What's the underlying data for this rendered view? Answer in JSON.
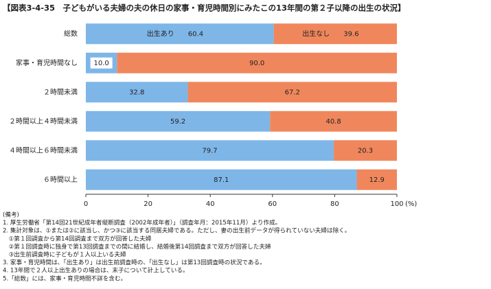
{
  "chart_data": {
    "type": "stacked-barh",
    "title": "【図表3-4-35　子どもがいる夫婦の夫の休日の家事・育児時間別にみたこの13年間の第２子以降の出生の状況】",
    "categories": [
      "総数",
      "家事・育児時間なし",
      "２時間未満",
      "２時間以上４時間未満",
      "４時間以上６時間未満",
      "６時間以上"
    ],
    "series": [
      {
        "name": "出生あり",
        "color": "#7fb6e8",
        "values": [
          60.4,
          10,
          32.8,
          59.2,
          79.7,
          87.1
        ],
        "value_labels": [
          "60.4",
          "10.0",
          "32.8",
          "59.2",
          "79.7",
          "87.1"
        ]
      },
      {
        "name": "出生なし",
        "color": "#f0875c",
        "values": [
          39.6,
          90,
          67.2,
          40.8,
          20.3,
          12.9
        ],
        "value_labels": [
          "39.6",
          "90.0",
          "67.2",
          "40.8",
          "20.3",
          "12.9"
        ]
      }
    ],
    "xlim": [
      0,
      100
    ],
    "xticks": [
      0,
      20,
      40,
      60,
      80,
      100
    ],
    "xlabel": "(%)",
    "notes": [
      "(備考)",
      "1. 厚生労働省「第14回21世紀成年者縦断調査（2002年成年者）」（調査年月：2015年11月）より作成。",
      "2. 集計対象は、①または②に該当し、かつ③に該当する同居夫婦である。ただし、妻の出生前データが得られていない夫婦は除く。",
      "　①第１回調査から第14回調査まで双方が回答した夫婦",
      "　②第１回調査時に独身で第13回調査までの間に結婚し、結婚後第14回調査まで双方が回答した夫婦",
      "　③出生前調査時に子どもが１人以上いる夫婦",
      "3. 家事・育児時間は、「出生あり」は出生前調査時の、「出生なし」は第13回調査時の状況である。",
      "4. 13年間で２人以上出生ありの場合は、末子について計上している。",
      "5.「総数」には、家事・育児時間不詳を含む。"
    ]
  }
}
